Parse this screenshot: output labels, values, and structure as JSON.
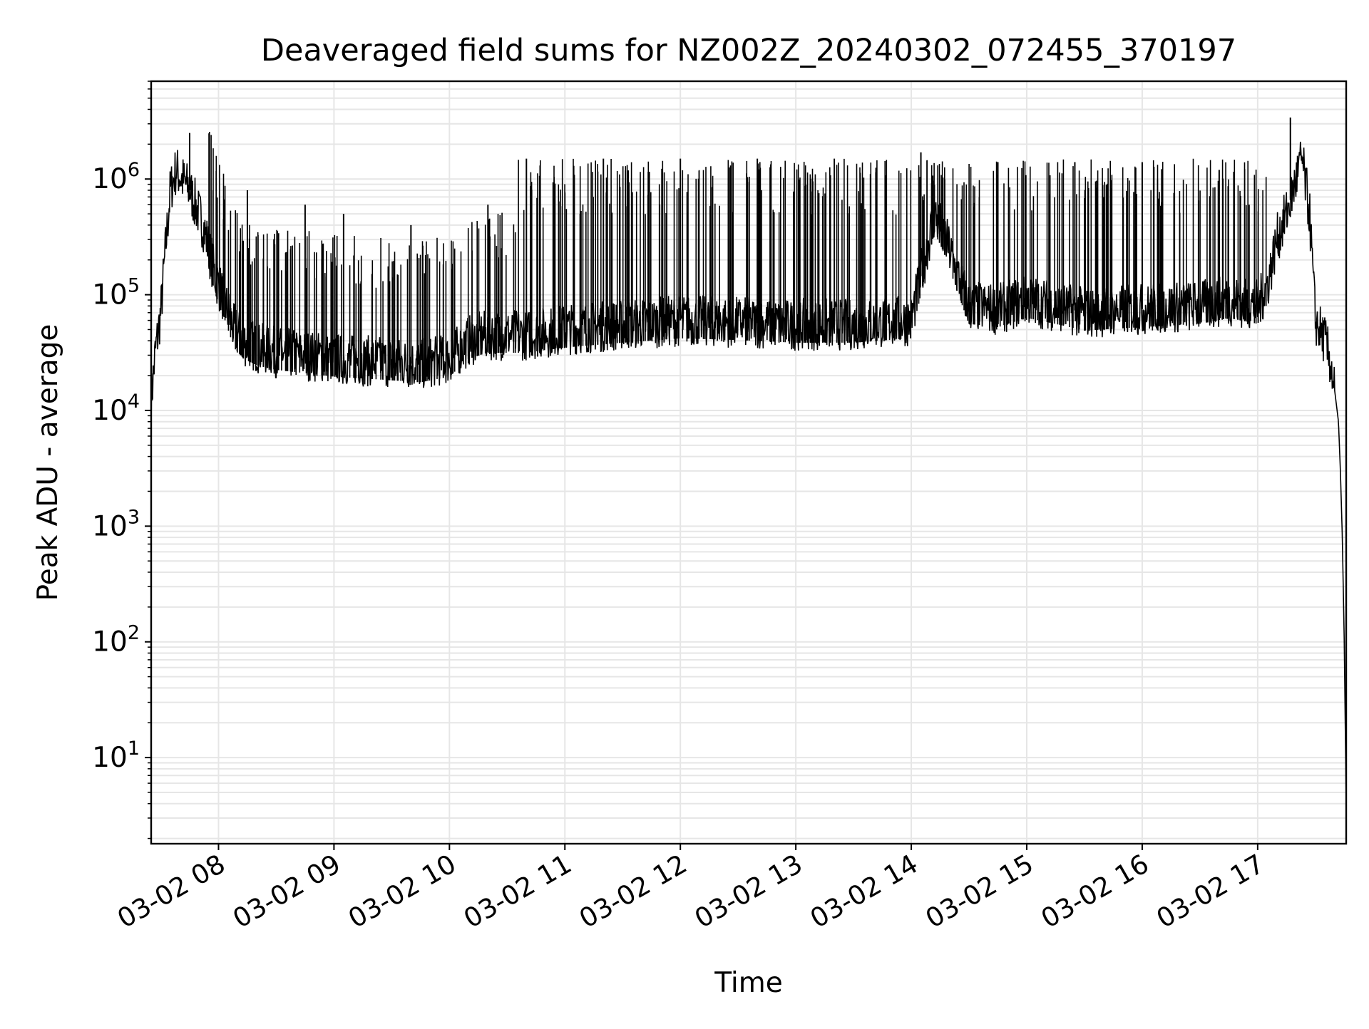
{
  "chart_data": {
    "type": "line",
    "title": "Deaveraged field sums for NZ002Z_20240302_072455_370197",
    "xlabel": "Time",
    "ylabel": "Peak ADU - average",
    "yscale": "log",
    "ylim": [
      1.8,
      7000000
    ],
    "xlim": [
      "2024-03-02 07:25",
      "2024-03-02 17:46"
    ],
    "grid": true,
    "grid_minor": true,
    "line_color": "#000000",
    "xticks": [
      {
        "time": "2024-03-02 08:00",
        "label": "03-02 08"
      },
      {
        "time": "2024-03-02 09:00",
        "label": "03-02 09"
      },
      {
        "time": "2024-03-02 10:00",
        "label": "03-02 10"
      },
      {
        "time": "2024-03-02 11:00",
        "label": "03-02 11"
      },
      {
        "time": "2024-03-02 12:00",
        "label": "03-02 12"
      },
      {
        "time": "2024-03-02 13:00",
        "label": "03-02 13"
      },
      {
        "time": "2024-03-02 14:00",
        "label": "03-02 14"
      },
      {
        "time": "2024-03-02 15:00",
        "label": "03-02 15"
      },
      {
        "time": "2024-03-02 16:00",
        "label": "03-02 16"
      },
      {
        "time": "2024-03-02 17:00",
        "label": "03-02 17"
      }
    ],
    "yticks": [
      {
        "value": 10,
        "base": "10",
        "exp": "1"
      },
      {
        "value": 100,
        "base": "10",
        "exp": "2"
      },
      {
        "value": 1000,
        "base": "10",
        "exp": "3"
      },
      {
        "value": 10000,
        "base": "10",
        "exp": "4"
      },
      {
        "value": 100000,
        "base": "10",
        "exp": "5"
      },
      {
        "value": 1000000,
        "base": "10",
        "exp": "6"
      }
    ],
    "series": [
      {
        "x": [
          "2024-03-02 07:25",
          "2024-03-02 07:27",
          "2024-03-02 07:30",
          "2024-03-02 07:32",
          "2024-03-02 07:35",
          "2024-03-02 07:38",
          "2024-03-02 07:41",
          "2024-03-02 07:45",
          "2024-03-02 07:48",
          "2024-03-02 07:52",
          "2024-03-02 07:55",
          "2024-03-02 07:58",
          "2024-03-02 08:03",
          "2024-03-02 08:08",
          "2024-03-02 08:13",
          "2024-03-02 08:20",
          "2024-03-02 08:30",
          "2024-03-02 08:45",
          "2024-03-02 09:00",
          "2024-03-02 09:15",
          "2024-03-02 09:30",
          "2024-03-02 09:45",
          "2024-03-02 10:00",
          "2024-03-02 10:10",
          "2024-03-02 10:20",
          "2024-03-02 10:40",
          "2024-03-02 11:00",
          "2024-03-02 11:30",
          "2024-03-02 12:00",
          "2024-03-02 12:30",
          "2024-03-02 13:00",
          "2024-03-02 13:30",
          "2024-03-02 14:00",
          "2024-03-02 14:12",
          "2024-03-02 14:18",
          "2024-03-02 14:24",
          "2024-03-02 14:30",
          "2024-03-02 14:45",
          "2024-03-02 15:00",
          "2024-03-02 15:15",
          "2024-03-02 15:30",
          "2024-03-02 16:00",
          "2024-03-02 16:30",
          "2024-03-02 16:45",
          "2024-03-02 17:00",
          "2024-03-02 17:05",
          "2024-03-02 17:10",
          "2024-03-02 17:15",
          "2024-03-02 17:20",
          "2024-03-02 17:23",
          "2024-03-02 17:27",
          "2024-03-02 17:30",
          "2024-03-02 17:35",
          "2024-03-02 17:38",
          "2024-03-02 17:40",
          "2024-03-02 17:42",
          "2024-03-02 17:43",
          "2024-03-02 17:44",
          "2024-03-02 17:45",
          "2024-03-02 17:46"
        ],
        "y": [
          12000,
          30000,
          70000,
          200000,
          800000,
          1200000,
          1000000,
          800000,
          600000,
          400000,
          250000,
          150000,
          90000,
          50000,
          40000,
          35000,
          32000,
          30000,
          28000,
          27000,
          26000,
          25000,
          28000,
          40000,
          45000,
          45000,
          50000,
          55000,
          60000,
          58000,
          55000,
          55000,
          60000,
          500000,
          300000,
          150000,
          80000,
          75000,
          90000,
          80000,
          70000,
          75000,
          80000,
          90000,
          80000,
          120000,
          300000,
          500000,
          1000000,
          1500000,
          500000,
          60000,
          40000,
          25000,
          15000,
          8000,
          3000,
          800,
          100,
          4
        ]
      }
    ],
    "spikes": [
      {
        "x": "2024-03-02 07:45",
        "y": 2500000
      },
      {
        "x": "2024-03-02 08:15",
        "y": 800000
      },
      {
        "x": "2024-03-02 08:45",
        "y": 600000
      },
      {
        "x": "2024-03-02 09:05",
        "y": 500000
      },
      {
        "x": "2024-03-02 09:40",
        "y": 400000
      },
      {
        "x": "2024-03-02 10:20",
        "y": 600000
      },
      {
        "x": "2024-03-02 10:40",
        "y": 1500000
      },
      {
        "x": "2024-03-02 11:20",
        "y": 1500000
      },
      {
        "x": "2024-03-02 12:00",
        "y": 1500000
      },
      {
        "x": "2024-03-02 12:40",
        "y": 1500000
      },
      {
        "x": "2024-03-02 13:20",
        "y": 1500000
      },
      {
        "x": "2024-03-02 14:05",
        "y": 1700000
      },
      {
        "x": "2024-03-02 14:45",
        "y": 1400000
      },
      {
        "x": "2024-03-02 15:25",
        "y": 1400000
      },
      {
        "x": "2024-03-02 16:00",
        "y": 1400000
      },
      {
        "x": "2024-03-02 16:40",
        "y": 1200000
      },
      {
        "x": "2024-03-02 17:17",
        "y": 3400000
      }
    ]
  }
}
